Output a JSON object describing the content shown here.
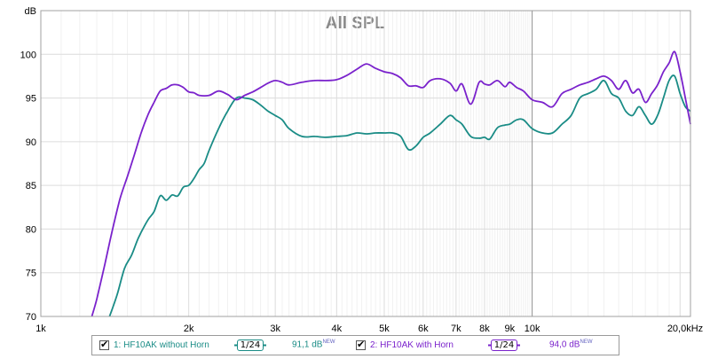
{
  "chart_data": {
    "type": "line",
    "title": "All SPL",
    "ylabel": "dB",
    "xscale": "log",
    "xlim": [
      1000,
      21000
    ],
    "ylim": [
      70,
      105
    ],
    "grid": true,
    "x_ticks": [
      {
        "value": 1000,
        "label": "1k"
      },
      {
        "value": 2000,
        "label": "2k"
      },
      {
        "value": 3000,
        "label": "3k"
      },
      {
        "value": 4000,
        "label": "4k"
      },
      {
        "value": 5000,
        "label": "5k"
      },
      {
        "value": 6000,
        "label": "6k"
      },
      {
        "value": 7000,
        "label": "7k"
      },
      {
        "value": 8000,
        "label": "8k"
      },
      {
        "value": 9000,
        "label": "9k"
      },
      {
        "value": 10000,
        "label": "10k"
      },
      {
        "value": 20000,
        "label": "20,0kHz"
      }
    ],
    "y_ticks": [
      {
        "value": 70,
        "label": "70"
      },
      {
        "value": 75,
        "label": "75"
      },
      {
        "value": 80,
        "label": "80"
      },
      {
        "value": 85,
        "label": "85"
      },
      {
        "value": 90,
        "label": "90"
      },
      {
        "value": 95,
        "label": "95"
      },
      {
        "value": 100,
        "label": "100"
      },
      {
        "value": 105,
        "label": "dB"
      }
    ],
    "series": [
      {
        "name": "1: HF10AK without Horn",
        "color": "#1a8c86",
        "smoothing": "1/24",
        "level": "91,1 dB",
        "badge": "NEW",
        "x": [
          1380,
          1430,
          1480,
          1530,
          1580,
          1650,
          1700,
          1750,
          1800,
          1850,
          1900,
          1950,
          2000,
          2050,
          2100,
          2150,
          2200,
          2300,
          2400,
          2500,
          2600,
          2700,
          2800,
          2900,
          3000,
          3100,
          3200,
          3400,
          3600,
          3800,
          4000,
          4200,
          4400,
          4600,
          4800,
          5000,
          5200,
          5400,
          5600,
          5800,
          6000,
          6200,
          6500,
          6800,
          7000,
          7200,
          7500,
          7800,
          8000,
          8200,
          8500,
          8800,
          9000,
          9300,
          9600,
          10000,
          10500,
          11000,
          11500,
          12000,
          12500,
          13000,
          13500,
          14000,
          14500,
          15000,
          15500,
          16000,
          16500,
          17000,
          17500,
          18000,
          18500,
          19000,
          19500,
          20000,
          20500,
          21000
        ],
        "y": [
          70,
          72.5,
          75.5,
          77,
          79,
          81,
          82,
          83.8,
          83.3,
          83.9,
          83.8,
          84.8,
          85,
          85.8,
          86.8,
          87.5,
          89,
          91.5,
          93.5,
          95,
          95,
          94.8,
          94.2,
          93.5,
          93,
          92.5,
          91.5,
          90.6,
          90.6,
          90.5,
          90.6,
          90.7,
          91,
          90.9,
          91,
          91,
          91,
          90.6,
          89.1,
          89.5,
          90.5,
          91,
          92,
          93,
          92.5,
          92,
          90.6,
          90.4,
          90.5,
          90.3,
          91.6,
          91.9,
          92,
          92.5,
          92.5,
          91.5,
          91,
          91,
          92,
          93,
          95,
          95.5,
          96,
          97,
          95.5,
          95,
          93.5,
          93,
          94,
          93,
          92,
          93,
          95,
          97,
          97.5,
          95.5,
          94,
          93.5
        ]
      },
      {
        "name": "2: HF10AK with Horn",
        "color": "#7a22cc",
        "smoothing": "1/24",
        "level": "94,0 dB",
        "badge": "NEW",
        "x": [
          1270,
          1300,
          1350,
          1400,
          1450,
          1500,
          1550,
          1600,
          1650,
          1700,
          1750,
          1800,
          1850,
          1900,
          1950,
          2000,
          2050,
          2100,
          2200,
          2300,
          2400,
          2500,
          2600,
          2700,
          2800,
          2900,
          3000,
          3100,
          3200,
          3400,
          3600,
          3800,
          4000,
          4200,
          4400,
          4600,
          4800,
          5000,
          5200,
          5400,
          5600,
          5800,
          6000,
          6200,
          6500,
          6800,
          7000,
          7200,
          7500,
          7800,
          8000,
          8200,
          8500,
          8800,
          9000,
          9300,
          9600,
          10000,
          10500,
          11000,
          11500,
          12000,
          12500,
          13000,
          13500,
          14000,
          14500,
          15000,
          15500,
          16000,
          16500,
          17000,
          17500,
          18000,
          18500,
          19000,
          19500,
          20000,
          20500,
          21000
        ],
        "y": [
          70,
          72,
          76,
          80,
          83.5,
          86,
          88.5,
          91,
          93,
          94.5,
          95.8,
          96.1,
          96.5,
          96.5,
          96.2,
          95.7,
          95.6,
          95.3,
          95.3,
          95.8,
          95.4,
          94.8,
          95.3,
          95.7,
          96.2,
          96.7,
          97,
          96.8,
          96.5,
          96.8,
          97,
          97,
          97.1,
          97.6,
          98.3,
          98.9,
          98.4,
          98,
          97.8,
          97.3,
          96.4,
          96.4,
          96.2,
          97,
          97.2,
          96.7,
          95.8,
          96.6,
          94.3,
          96.8,
          96.6,
          96.5,
          97,
          96.3,
          96.8,
          96.2,
          95.8,
          94.8,
          94.5,
          94,
          95.5,
          96,
          96.5,
          96.8,
          97.2,
          97.5,
          97,
          96,
          97,
          95.6,
          96,
          94.5,
          95.5,
          96.5,
          98,
          99,
          100.3,
          98,
          95,
          92
        ]
      }
    ]
  }
}
